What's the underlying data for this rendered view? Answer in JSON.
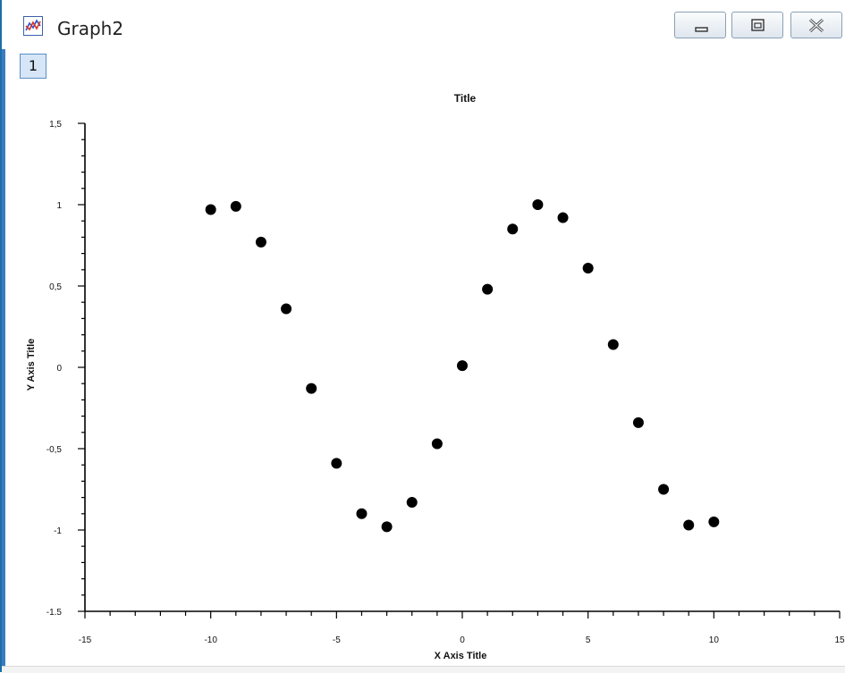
{
  "window": {
    "title": "Graph2",
    "tab_label": "1",
    "icon": "graph-icon",
    "controls": [
      "minimize-icon",
      "maximize-icon",
      "close-icon"
    ]
  },
  "chart_data": {
    "type": "scatter",
    "title": "Title",
    "xlabel": "X Axis Title",
    "ylabel": "Y Axis Title",
    "xlim": [
      -15,
      15
    ],
    "ylim": [
      -1.5,
      1.5
    ],
    "x_ticks": [
      -15,
      -10,
      -5,
      0,
      5,
      10,
      15
    ],
    "x_tick_labels": [
      "-15",
      "-10",
      "-5",
      "0",
      "5",
      "10",
      "15"
    ],
    "y_ticks": [
      1.5,
      1,
      0.5,
      0,
      -0.5,
      -1,
      -1.5
    ],
    "y_tick_labels": [
      "1,5",
      "1",
      "0,5",
      "0",
      "-0,5",
      "-1",
      "-1.5"
    ],
    "grid": false,
    "marker_color": "#000000",
    "series": [
      {
        "x": [
          -10,
          -9,
          -8,
          -7,
          -6,
          -5,
          -4,
          -3,
          -2,
          -1,
          0,
          1,
          2,
          3,
          4,
          5,
          6,
          7,
          8,
          9,
          10
        ],
        "y": [
          0.97,
          0.99,
          0.77,
          0.36,
          -0.13,
          -0.59,
          -0.9,
          -0.98,
          -0.83,
          -0.47,
          0.01,
          0.48,
          0.85,
          1.0,
          0.92,
          0.61,
          0.14,
          -0.34,
          -0.75,
          -0.97,
          -0.95
        ]
      }
    ]
  }
}
